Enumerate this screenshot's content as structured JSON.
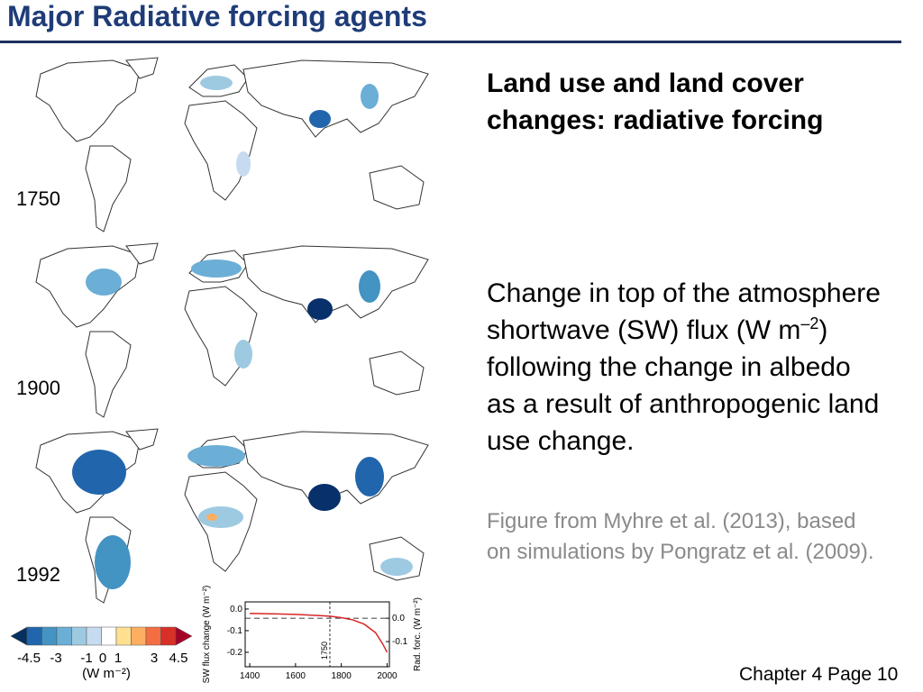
{
  "header": {
    "title": "Major Radiative forcing agents"
  },
  "maps": [
    {
      "label": "1750"
    },
    {
      "label": "1900"
    },
    {
      "label": "1992"
    }
  ],
  "colorbar": {
    "ticks": [
      "-4.5",
      "-3",
      "-1",
      "0",
      "1",
      "3",
      "4.5"
    ],
    "units": "(W m⁻²)"
  },
  "inset": {
    "ylabel": "SW flux change (W m⁻²)",
    "y2label": "Rad. forc. (W m⁻²)",
    "x": [
      1400,
      1500,
      1600,
      1700,
      1750,
      1800,
      1850,
      1900,
      1950,
      1980,
      2000
    ],
    "values": [
      -0.02,
      -0.022,
      -0.025,
      -0.03,
      -0.033,
      -0.04,
      -0.05,
      -0.07,
      -0.11,
      -0.16,
      -0.2
    ],
    "color": "#d62728",
    "xlim": [
      1380,
      2010
    ],
    "xticks": [
      1400,
      1600,
      1800,
      2000
    ],
    "ylim": [
      -0.267,
      0.033
    ],
    "yticks": [
      {
        "value": 0,
        "label": "0.0"
      },
      {
        "value": -0.1,
        "label": "-0.1"
      },
      {
        "value": -0.2,
        "label": "-0.2"
      }
    ],
    "y2lim": [
      -0.208,
      0.07
    ],
    "y2ticks": [
      {
        "value": 0,
        "label": "0.0"
      },
      {
        "value": -0.1,
        "label": "-0.1"
      }
    ],
    "vline": 1750
  },
  "side": {
    "heading": "Land use and land cover changes: radiative forcing",
    "body_before": "Change in top of the atmosphere shortwave (SW) flux (W m",
    "body_sup": "–2",
    "body_after": ") following the change in albedo as a result of anthropogenic land use change.",
    "caption": "Figure from Myhre et al. (2013), based on simulations by Pongratz et al. (2009)."
  },
  "footer": {
    "page": "Chapter 4 Page 10"
  }
}
